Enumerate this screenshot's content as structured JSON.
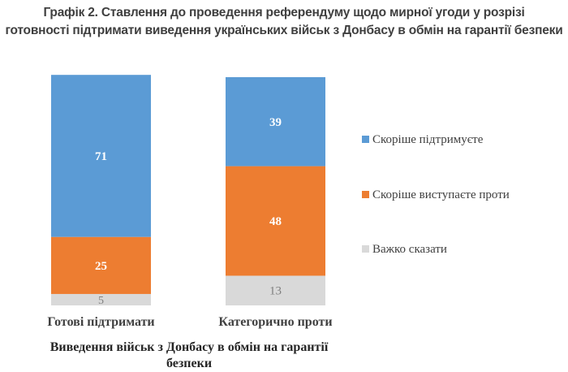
{
  "chart_data": {
    "type": "bar",
    "stacked": true,
    "title_lines": [
      "Графік 2. Ставлення до проведення референдуму щодо мирної угоди у розрізі",
      "готовності підтримати виведення українських військ з Донбасу в обмін на гарантії безпеки"
    ],
    "categories": [
      "Готові підтримати",
      "Категорично проти"
    ],
    "xlabel_lines": [
      "Виведення військ з Донбасу в обмін на гарантії",
      "безпеки"
    ],
    "ylabel": "",
    "series": [
      {
        "name": "Скоріше підтримуєте",
        "values": [
          71,
          39
        ],
        "color": "#5b9bd5",
        "label_color": "#ffffff"
      },
      {
        "name": "Скоріше виступаєте проти",
        "values": [
          25,
          48
        ],
        "color": "#ed7d31",
        "label_color": "#ffffff"
      },
      {
        "name": "Важко сказати",
        "values": [
          5,
          13
        ],
        "color": "#d9d9d9",
        "label_color": "#7f7f7f"
      }
    ],
    "ylim": [
      0,
      100
    ],
    "grid": false,
    "legend_position": "right"
  }
}
